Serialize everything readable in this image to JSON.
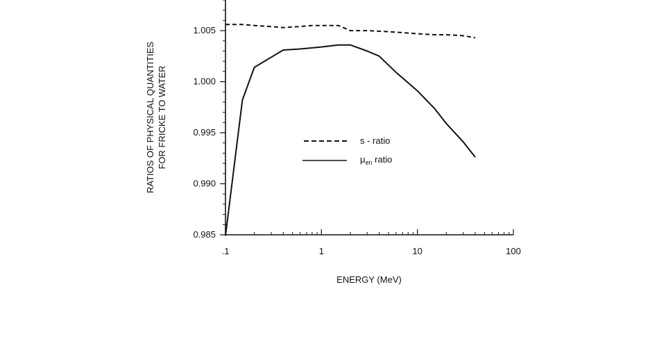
{
  "chart_data": {
    "type": "line",
    "title": "",
    "xlabel": "ENERGY (MeV)",
    "ylabel_lines": [
      "RATIOS OF PHYSICAL QUANTITIES",
      "FOR FRICKE TO WATER"
    ],
    "x_scale": "log",
    "xlim": [
      0.1,
      100
    ],
    "ylim": [
      0.985,
      1.008
    ],
    "x_ticks": [
      {
        "value": 0.1,
        "label": ".1"
      },
      {
        "value": 1,
        "label": "1"
      },
      {
        "value": 10,
        "label": "10"
      },
      {
        "value": 100,
        "label": "100"
      }
    ],
    "y_ticks": [
      {
        "value": 0.985,
        "label": "0.985"
      },
      {
        "value": 0.99,
        "label": "0.990"
      },
      {
        "value": 0.995,
        "label": "0.995"
      },
      {
        "value": 1.0,
        "label": "1.000"
      },
      {
        "value": 1.005,
        "label": "1.005"
      }
    ],
    "y_minor_step": 0.001,
    "grid": false,
    "legend_position": "center",
    "series": [
      {
        "name": "s - ratio",
        "style": "dashed",
        "color": "#111111",
        "points": [
          [
            0.1,
            1.0056
          ],
          [
            0.15,
            1.0056
          ],
          [
            0.2,
            1.0055
          ],
          [
            0.3,
            1.0054
          ],
          [
            0.4,
            1.0053
          ],
          [
            0.6,
            1.0054
          ],
          [
            0.8,
            1.0055
          ],
          [
            1.0,
            1.0055
          ],
          [
            1.5,
            1.0055
          ],
          [
            2.0,
            1.005
          ],
          [
            3.0,
            1.005
          ],
          [
            5.0,
            1.0049
          ],
          [
            10.0,
            1.0047
          ],
          [
            15.0,
            1.0046
          ],
          [
            20.0,
            1.0046
          ],
          [
            30.0,
            1.0045
          ],
          [
            40.0,
            1.0043
          ]
        ]
      },
      {
        "name_main": "μ",
        "name_sub": "en",
        "name_rest": " ratio",
        "style": "solid",
        "color": "#111111",
        "points": [
          [
            0.1,
            0.9849
          ],
          [
            0.15,
            0.9982
          ],
          [
            0.2,
            1.0014
          ],
          [
            0.3,
            1.0024
          ],
          [
            0.4,
            1.0031
          ],
          [
            0.6,
            1.0032
          ],
          [
            1.0,
            1.0034
          ],
          [
            1.5,
            1.0036
          ],
          [
            2.0,
            1.0036
          ],
          [
            3.0,
            1.003
          ],
          [
            4.0,
            1.0025
          ],
          [
            6.0,
            1.0009
          ],
          [
            10.0,
            0.9991
          ],
          [
            15.0,
            0.9974
          ],
          [
            20.0,
            0.9959
          ],
          [
            30.0,
            0.9941
          ],
          [
            40.0,
            0.9926
          ]
        ]
      }
    ]
  }
}
